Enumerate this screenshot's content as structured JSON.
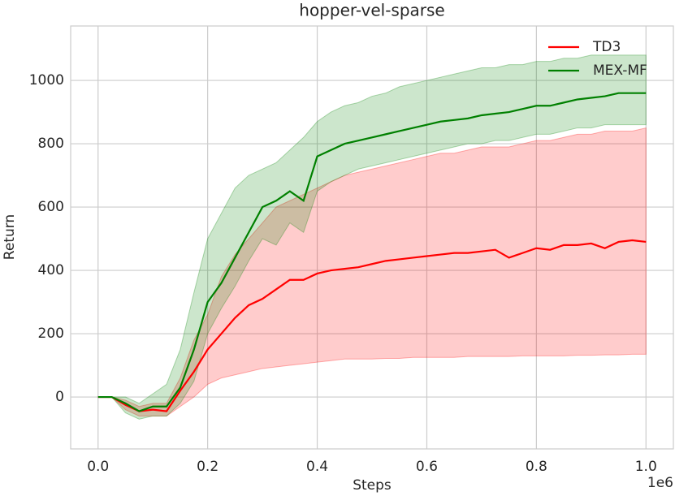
{
  "chart_data": {
    "type": "line",
    "title": "hopper-vel-sparse",
    "x_label": "Steps",
    "y_label": "Return",
    "x_offset_label": "1e6",
    "x": [
      0,
      0.025,
      0.05,
      0.075,
      0.1,
      0.125,
      0.15,
      0.175,
      0.2,
      0.225,
      0.25,
      0.275,
      0.3,
      0.325,
      0.35,
      0.375,
      0.4,
      0.425,
      0.45,
      0.475,
      0.5,
      0.525,
      0.55,
      0.575,
      0.6,
      0.625,
      0.65,
      0.675,
      0.7,
      0.725,
      0.75,
      0.775,
      0.8,
      0.825,
      0.85,
      0.875,
      0.9,
      0.925,
      0.95,
      0.975,
      1.0
    ],
    "series": [
      {
        "name": "TD3",
        "color": "#ff0000",
        "values": [
          0,
          0,
          -25,
          -45,
          -40,
          -45,
          20,
          80,
          150,
          200,
          250,
          290,
          310,
          340,
          370,
          370,
          390,
          400,
          405,
          410,
          420,
          430,
          435,
          440,
          445,
          450,
          455,
          455,
          460,
          465,
          440,
          455,
          470,
          465,
          480,
          480,
          485,
          470,
          490,
          495,
          490
        ],
        "lower": [
          0,
          0,
          -40,
          -60,
          -60,
          -60,
          -30,
          0,
          40,
          60,
          70,
          80,
          90,
          95,
          100,
          105,
          110,
          115,
          120,
          120,
          120,
          122,
          122,
          125,
          125,
          125,
          125,
          128,
          128,
          128,
          128,
          130,
          130,
          130,
          130,
          132,
          132,
          133,
          133,
          135,
          135
        ],
        "upper": [
          0,
          0,
          -10,
          -30,
          -20,
          -20,
          60,
          180,
          260,
          380,
          450,
          500,
          550,
          600,
          620,
          640,
          660,
          680,
          700,
          710,
          720,
          730,
          740,
          750,
          760,
          770,
          770,
          780,
          790,
          790,
          790,
          800,
          810,
          810,
          820,
          830,
          830,
          840,
          840,
          840,
          850
        ]
      },
      {
        "name": "MEX-MF",
        "color": "#008000",
        "values": [
          0,
          0,
          -20,
          -45,
          -30,
          -30,
          30,
          150,
          300,
          360,
          440,
          520,
          600,
          620,
          650,
          620,
          760,
          780,
          800,
          810,
          820,
          830,
          840,
          850,
          860,
          870,
          875,
          880,
          890,
          895,
          900,
          910,
          920,
          920,
          930,
          940,
          945,
          950,
          960,
          960,
          960
        ],
        "lower": [
          0,
          0,
          -50,
          -70,
          -60,
          -60,
          -20,
          50,
          200,
          280,
          350,
          430,
          500,
          480,
          550,
          520,
          650,
          680,
          700,
          720,
          730,
          740,
          750,
          760,
          770,
          780,
          790,
          800,
          800,
          810,
          810,
          820,
          830,
          830,
          840,
          850,
          850,
          860,
          860,
          860,
          860
        ],
        "upper": [
          0,
          0,
          0,
          -20,
          10,
          40,
          150,
          330,
          500,
          580,
          660,
          700,
          720,
          740,
          780,
          820,
          870,
          900,
          920,
          930,
          950,
          960,
          980,
          990,
          1000,
          1010,
          1020,
          1030,
          1040,
          1040,
          1050,
          1050,
          1060,
          1060,
          1070,
          1070,
          1080,
          1080,
          1080,
          1080,
          1080
        ]
      }
    ],
    "xlim": [
      -0.05,
      1.05
    ],
    "ylim": [
      -164,
      1172
    ],
    "xticks": [
      {
        "value": 0,
        "label": "0.0"
      },
      0.2,
      0.4,
      0.6,
      0.8,
      {
        "value": 1,
        "label": "1.0"
      }
    ],
    "yticks": [
      0,
      200,
      400,
      600,
      800,
      1000
    ],
    "grid": true,
    "legend": "upper right",
    "band_opacity": 0.2
  }
}
